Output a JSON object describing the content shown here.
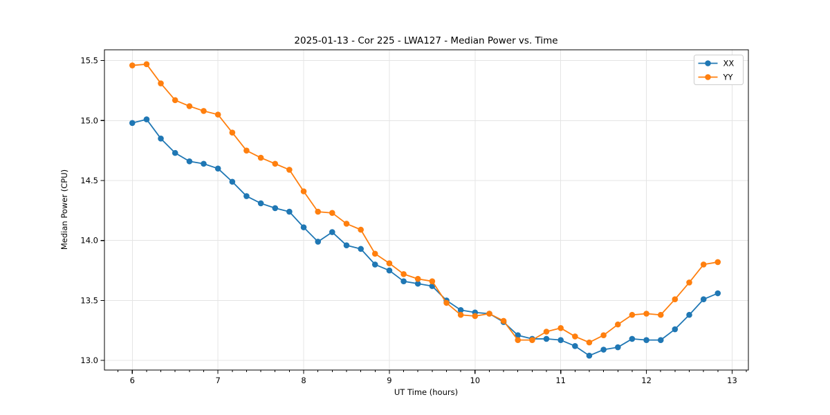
{
  "chart_data": {
    "type": "line",
    "title": "2025-01-13 - Cor 225 - LWA127 - Median Power vs. Time",
    "xlabel": "UT Time (hours)",
    "ylabel": "Median Power (CPU)",
    "xlim": [
      5.675,
      13.19
    ],
    "ylim": [
      12.92,
      15.59
    ],
    "xticks": [
      6,
      7,
      8,
      9,
      10,
      11,
      12,
      13
    ],
    "xtick_labels": [
      "6",
      "7",
      "8",
      "9",
      "10",
      "11",
      "12",
      "13"
    ],
    "yticks": [
      13.0,
      13.5,
      14.0,
      14.5,
      15.0,
      15.5
    ],
    "ytick_labels": [
      "13.0",
      "13.5",
      "14.0",
      "14.5",
      "15.0",
      "15.5"
    ],
    "x_minor_step": 0.16667,
    "grid": true,
    "grid_color": "#e4e4e4",
    "legend_position": "top-right",
    "x": [
      6.0,
      6.167,
      6.333,
      6.5,
      6.667,
      6.833,
      7.0,
      7.167,
      7.333,
      7.5,
      7.667,
      7.833,
      8.0,
      8.167,
      8.333,
      8.5,
      8.667,
      8.833,
      9.0,
      9.167,
      9.333,
      9.5,
      9.667,
      9.833,
      10.0,
      10.167,
      10.333,
      10.5,
      10.667,
      10.833,
      11.0,
      11.167,
      11.333,
      11.5,
      11.667,
      11.833,
      12.0,
      12.167,
      12.333,
      12.5,
      12.667,
      12.833
    ],
    "series": [
      {
        "name": "XX",
        "color": "#1f77b4",
        "values": [
          14.98,
          15.01,
          14.85,
          14.73,
          14.66,
          14.64,
          14.6,
          14.49,
          14.37,
          14.31,
          14.27,
          14.24,
          14.11,
          13.99,
          14.07,
          13.96,
          13.93,
          13.8,
          13.75,
          13.66,
          13.64,
          13.62,
          13.5,
          13.42,
          13.4,
          13.39,
          13.32,
          13.21,
          13.18,
          13.18,
          13.17,
          13.12,
          13.04,
          13.09,
          13.11,
          13.18,
          13.17,
          13.17,
          13.26,
          13.38,
          13.51,
          13.56
        ]
      },
      {
        "name": "YY",
        "color": "#ff7f0e",
        "values": [
          15.46,
          15.47,
          15.31,
          15.17,
          15.12,
          15.08,
          15.05,
          14.9,
          14.75,
          14.69,
          14.64,
          14.59,
          14.41,
          14.24,
          14.23,
          14.14,
          14.09,
          13.89,
          13.81,
          13.72,
          13.68,
          13.66,
          13.48,
          13.38,
          13.37,
          13.39,
          13.33,
          13.17,
          13.17,
          13.24,
          13.27,
          13.2,
          13.15,
          13.21,
          13.3,
          13.38,
          13.39,
          13.38,
          13.51,
          13.65,
          13.8,
          13.82
        ]
      }
    ]
  }
}
